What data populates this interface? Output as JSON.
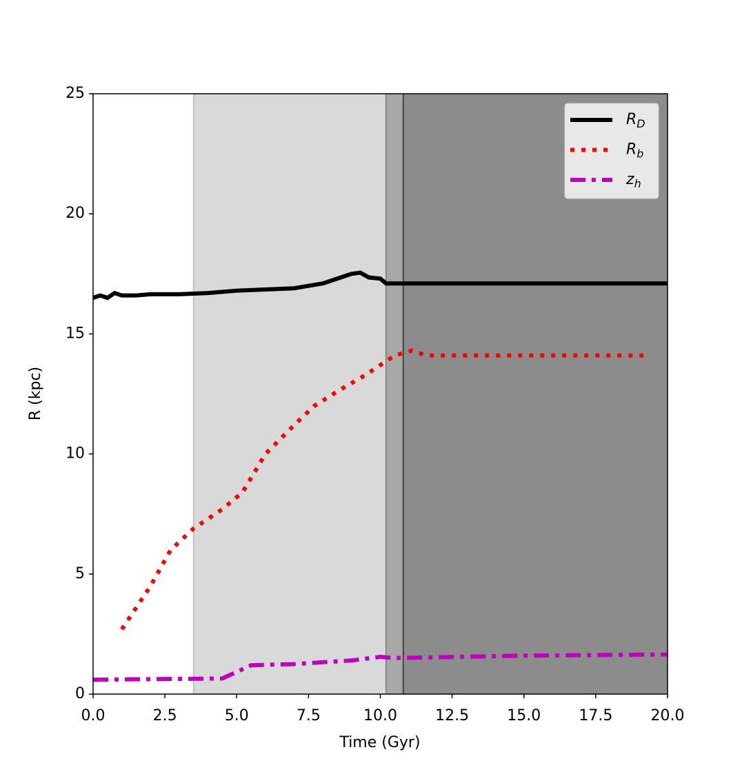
{
  "chart_data": {
    "type": "line",
    "xlabel": "Time (Gyr)",
    "ylabel": "R (kpc)",
    "xlim": [
      0,
      20
    ],
    "ylim": [
      0,
      25
    ],
    "xticks": [
      {
        "value": 0,
        "label": "0.0"
      },
      {
        "value": 2.5,
        "label": "2.5"
      },
      {
        "value": 5,
        "label": "5.0"
      },
      {
        "value": 7.5,
        "label": "7.5"
      },
      {
        "value": 10,
        "label": "10.0"
      },
      {
        "value": 12.5,
        "label": "12.5"
      },
      {
        "value": 15,
        "label": "15.0"
      },
      {
        "value": 17.5,
        "label": "17.5"
      },
      {
        "value": 20,
        "label": "20.0"
      }
    ],
    "yticks": [
      0,
      5,
      10,
      15,
      20,
      25
    ],
    "spans": [
      {
        "start": 3.5,
        "end": 10.2,
        "color": "#d9d9d9"
      },
      {
        "start": 10.2,
        "end": 10.8,
        "color": "#a8a8a8"
      },
      {
        "start": 10.8,
        "end": 20,
        "color": "#8c8c8c"
      }
    ],
    "vlines": [
      {
        "x": 3.5,
        "color": "#c0c0c0"
      },
      {
        "x": 10.2,
        "color": "#888888"
      },
      {
        "x": 10.8,
        "color": "#444444"
      }
    ],
    "legend": "upper right",
    "series": [
      {
        "name": "R",
        "subscript": "D",
        "color": "#000000",
        "linestyle": "solid",
        "x": [
          0,
          0.25,
          0.5,
          0.75,
          1,
          1.5,
          2,
          3,
          4,
          5,
          6,
          7,
          7.5,
          8,
          8.5,
          9,
          9.3,
          9.6,
          10,
          10.2,
          12,
          15,
          20
        ],
        "values": [
          16.5,
          16.6,
          16.5,
          16.7,
          16.6,
          16.6,
          16.65,
          16.65,
          16.7,
          16.8,
          16.85,
          16.9,
          17.0,
          17.1,
          17.3,
          17.5,
          17.55,
          17.35,
          17.3,
          17.1,
          17.1,
          17.1,
          17.1
        ]
      },
      {
        "name": "R",
        "subscript": "b",
        "color": "#ff0000",
        "linestyle": "dotted",
        "x": [
          1,
          2,
          2.7,
          3.5,
          4.5,
          5.2,
          6,
          7,
          7.7,
          8.5,
          9.5,
          10.5,
          11.1,
          11.6,
          19.3
        ],
        "values": [
          2.7,
          4.5,
          6.0,
          6.9,
          7.7,
          8.4,
          10.0,
          11.2,
          12.0,
          12.6,
          13.3,
          14.1,
          14.3,
          14.1,
          14.1
        ]
      },
      {
        "name": "z",
        "subscript": "h",
        "color": "#bf00bf",
        "linestyle": "dashdot",
        "x": [
          0,
          4.5,
          5.5,
          7,
          9,
          10,
          10.5,
          15,
          20
        ],
        "values": [
          0.6,
          0.65,
          1.2,
          1.25,
          1.4,
          1.55,
          1.5,
          1.6,
          1.65
        ]
      }
    ]
  }
}
